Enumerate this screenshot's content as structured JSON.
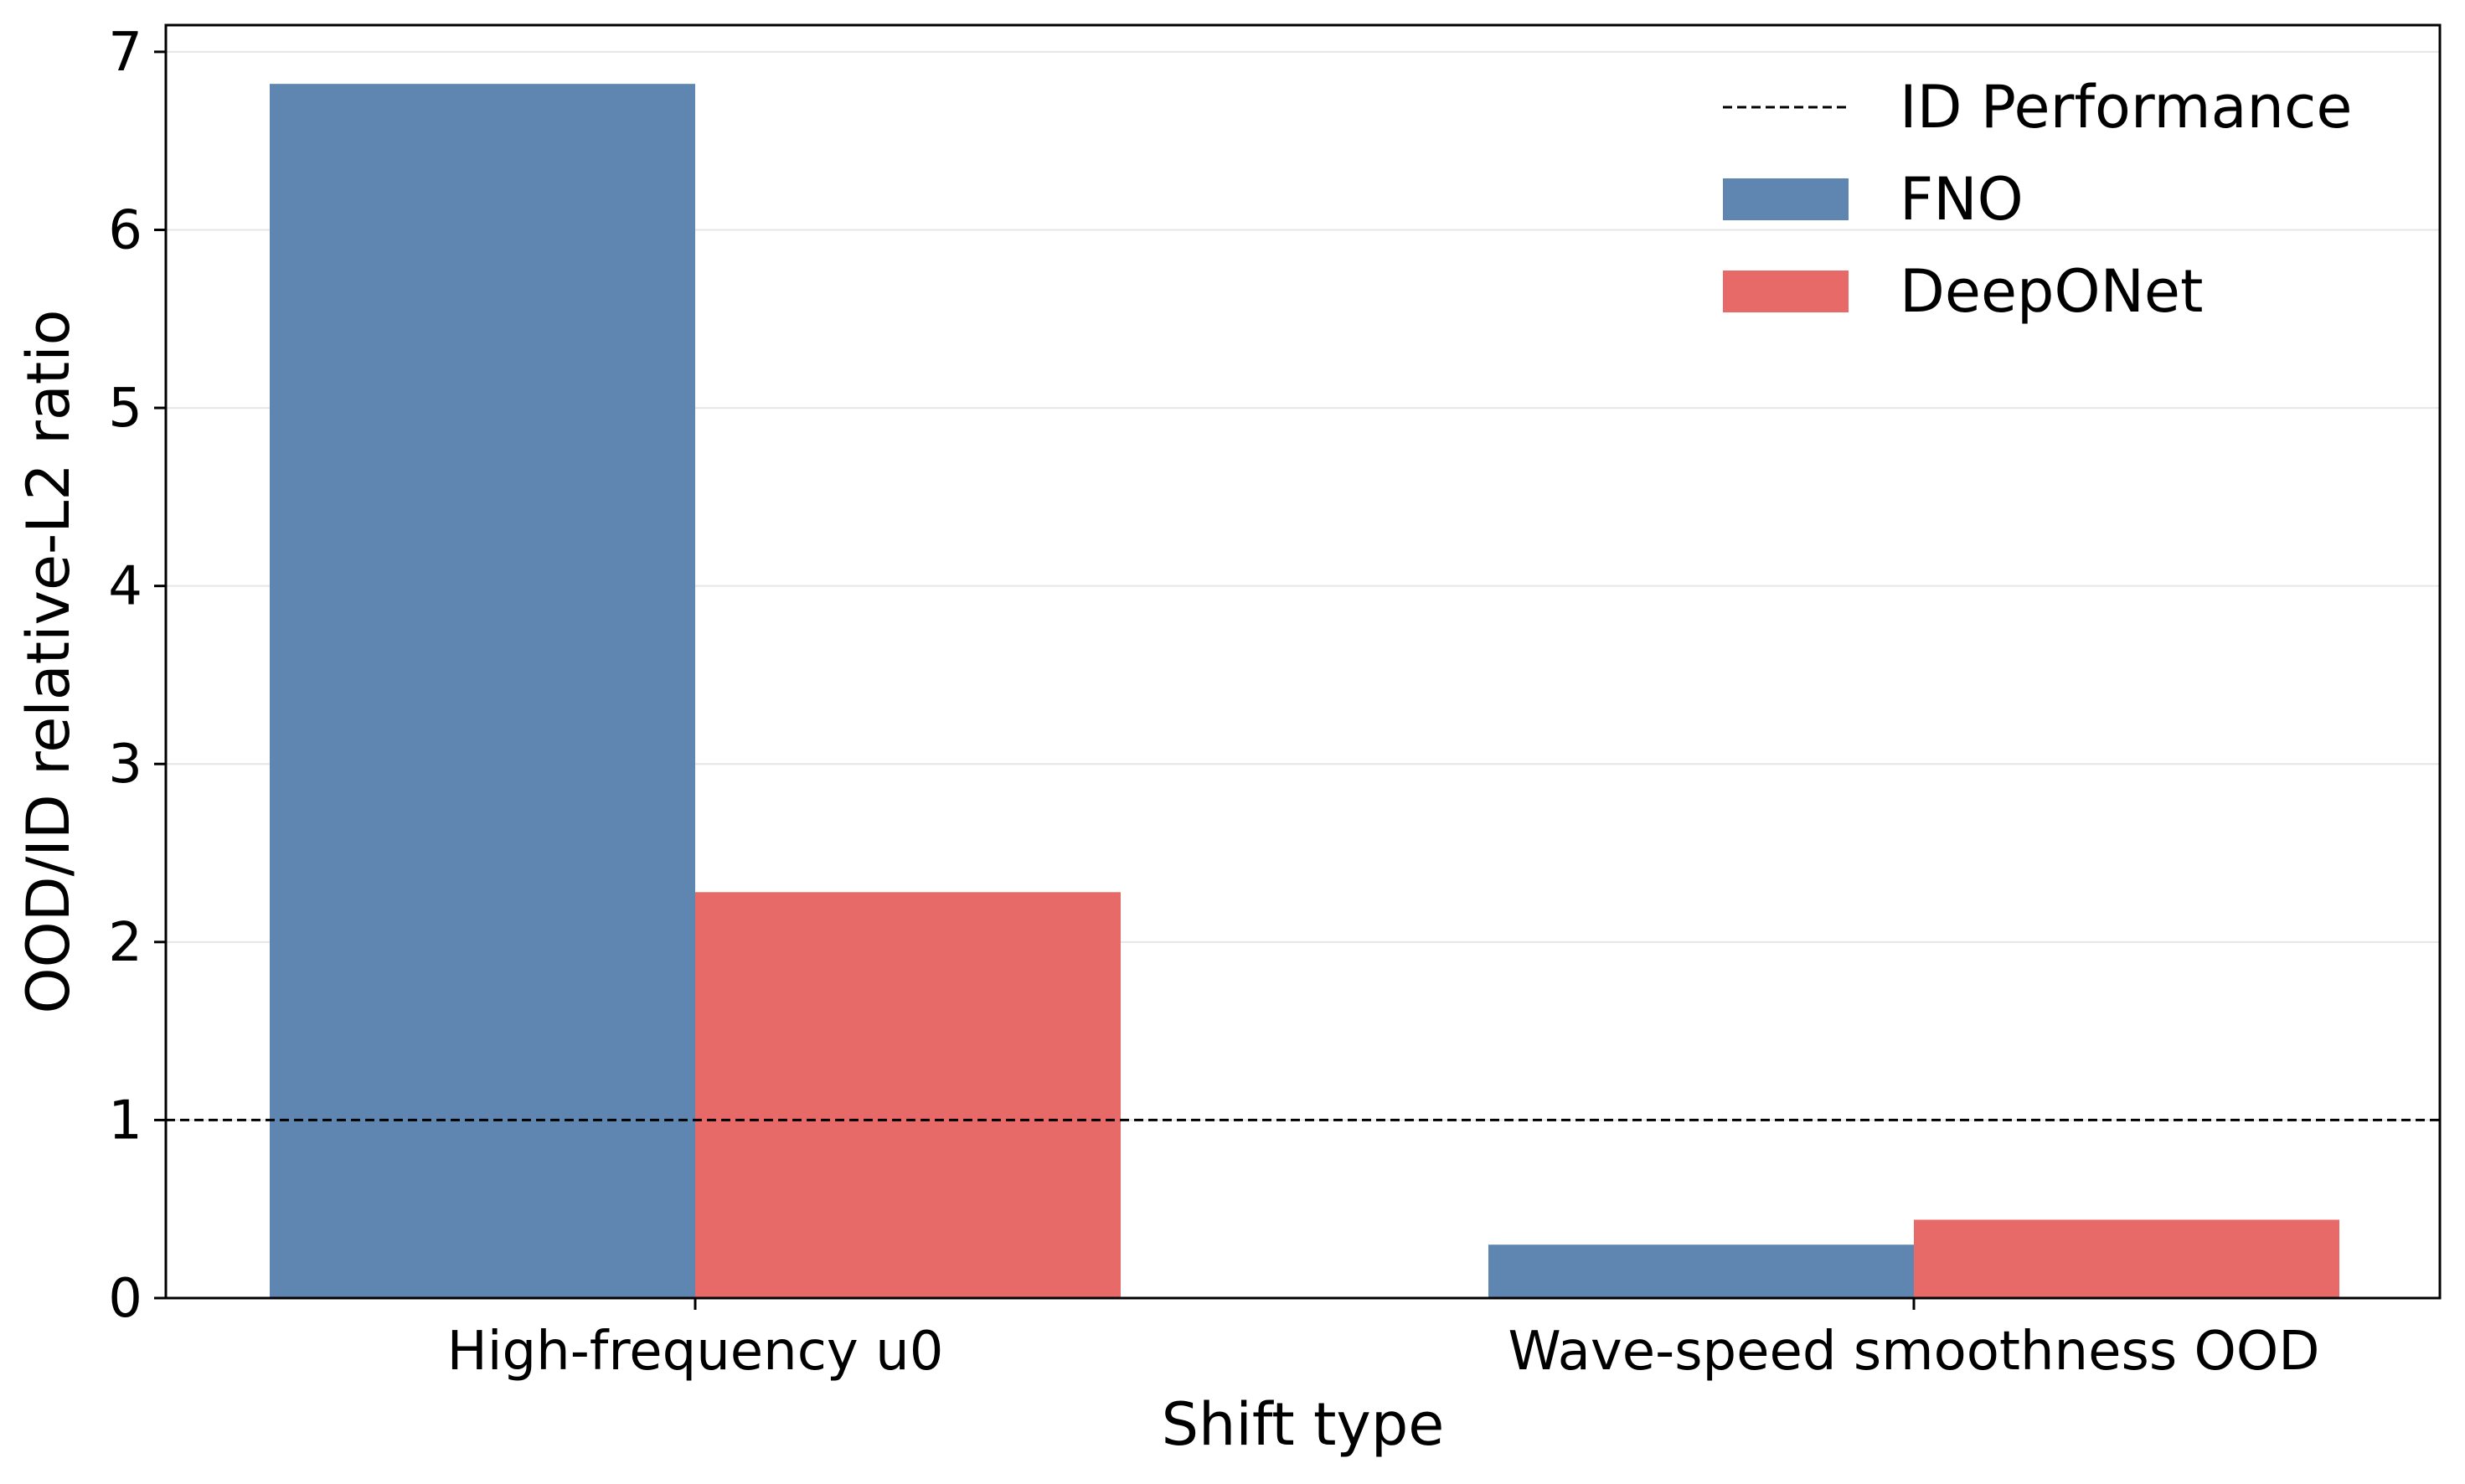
{
  "chart_data": {
    "type": "bar",
    "title": "",
    "xlabel": "Shift type",
    "ylabel": "OOD/ID relative-L2 ratio",
    "categories": [
      "High-frequency u0",
      "Wave-speed smoothness OOD"
    ],
    "series": [
      {
        "name": "FNO",
        "values": [
          6.82,
          0.3
        ],
        "color": "#5f86b0"
      },
      {
        "name": "DeepONet",
        "values": [
          2.28,
          0.44
        ],
        "color": "#e76a69"
      }
    ],
    "reference_line": {
      "name": "ID Performance",
      "value": 1.0,
      "style": "dashed",
      "color": "#000000"
    },
    "ylim": [
      0,
      7.15
    ],
    "yticks": [
      0,
      1,
      2,
      3,
      4,
      5,
      6,
      7
    ],
    "ytick_labels": [
      "0",
      "1",
      "2",
      "3",
      "4",
      "5",
      "6",
      "7"
    ],
    "grid": "horizontal-light",
    "legend_position": "top-right"
  }
}
